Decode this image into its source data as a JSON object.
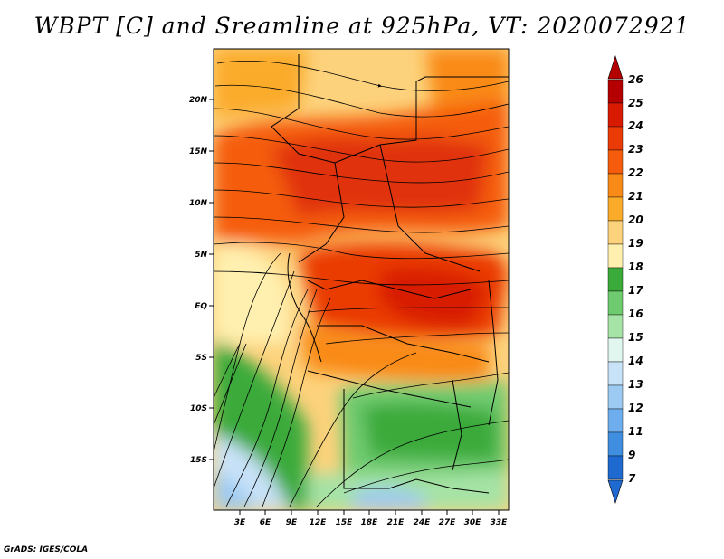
{
  "title": "WBPT [C] and Sreamline at 925hPa, VT: 2020072921",
  "footer": "GrADS: IGES/COLA",
  "map": {
    "lat_labels": [
      "20N",
      "15N",
      "10N",
      "5N",
      "EQ",
      "5S",
      "10S",
      "15S"
    ],
    "lon_labels": [
      "3E",
      "6E",
      "9E",
      "12E",
      "15E",
      "18E",
      "21E",
      "24E",
      "27E",
      "30E",
      "33E"
    ],
    "lon_range": [
      0,
      34
    ],
    "lat_range": [
      -20,
      24
    ]
  },
  "colorbar": {
    "labels": [
      "26",
      "25",
      "24",
      "23",
      "22",
      "21",
      "20",
      "19",
      "18",
      "17",
      "16",
      "15",
      "14",
      "13",
      "12",
      "11",
      "9",
      "7"
    ],
    "colors": [
      "#b40000",
      "#d81b00",
      "#ea3a06",
      "#f55d0c",
      "#f98a18",
      "#fbab2a",
      "#fdd27c",
      "#fff0b0",
      "#3aaa3a",
      "#6fcb6f",
      "#a6e3a6",
      "#e0f6ee",
      "#c8e2f8",
      "#9ccaf2",
      "#6eaeee",
      "#3f8ee0",
      "#1f6ad0"
    ]
  }
}
